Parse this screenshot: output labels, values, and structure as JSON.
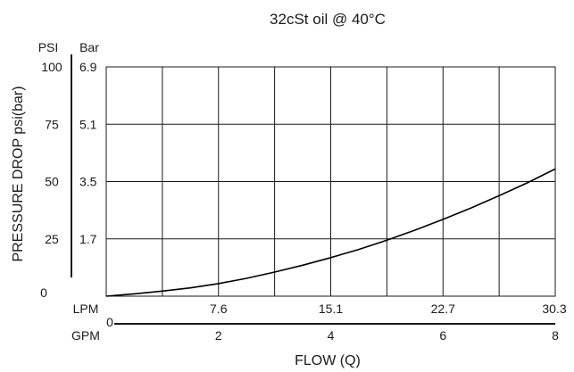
{
  "chart_data": {
    "type": "line",
    "title": "32cSt oil @ 40°C",
    "xlabel": "FLOW (Q)",
    "ylabel": "PRESSURE DROP  psi(bar)",
    "x_unit_primary": "LPM",
    "x_unit_secondary": "GPM",
    "y_unit_primary": "PSI",
    "y_unit_secondary": "Bar",
    "xlim": [
      0,
      8
    ],
    "ylim": [
      0,
      100
    ],
    "x_ticks_gpm": [
      "0",
      "2",
      "4",
      "6",
      "8"
    ],
    "x_ticks_lpm": [
      "7.6",
      "15.1",
      "22.7",
      "30.3"
    ],
    "y_ticks_psi": [
      "0",
      "25",
      "50",
      "75",
      "100"
    ],
    "y_ticks_bar": [
      "1.7",
      "3.5",
      "5.1",
      "6.9"
    ],
    "grid": true,
    "series": [
      {
        "x": [
          0,
          0.5,
          1,
          1.5,
          2,
          2.5,
          3,
          3.5,
          4,
          4.5,
          5,
          5.5,
          6,
          6.5,
          7,
          7.5,
          8
        ],
        "y": [
          0,
          1,
          2.2,
          3.6,
          5.5,
          7.8,
          10.5,
          13.5,
          16.8,
          20.4,
          24.4,
          28.8,
          33.5,
          38.5,
          43.8,
          49.4,
          55.5
        ]
      }
    ]
  }
}
